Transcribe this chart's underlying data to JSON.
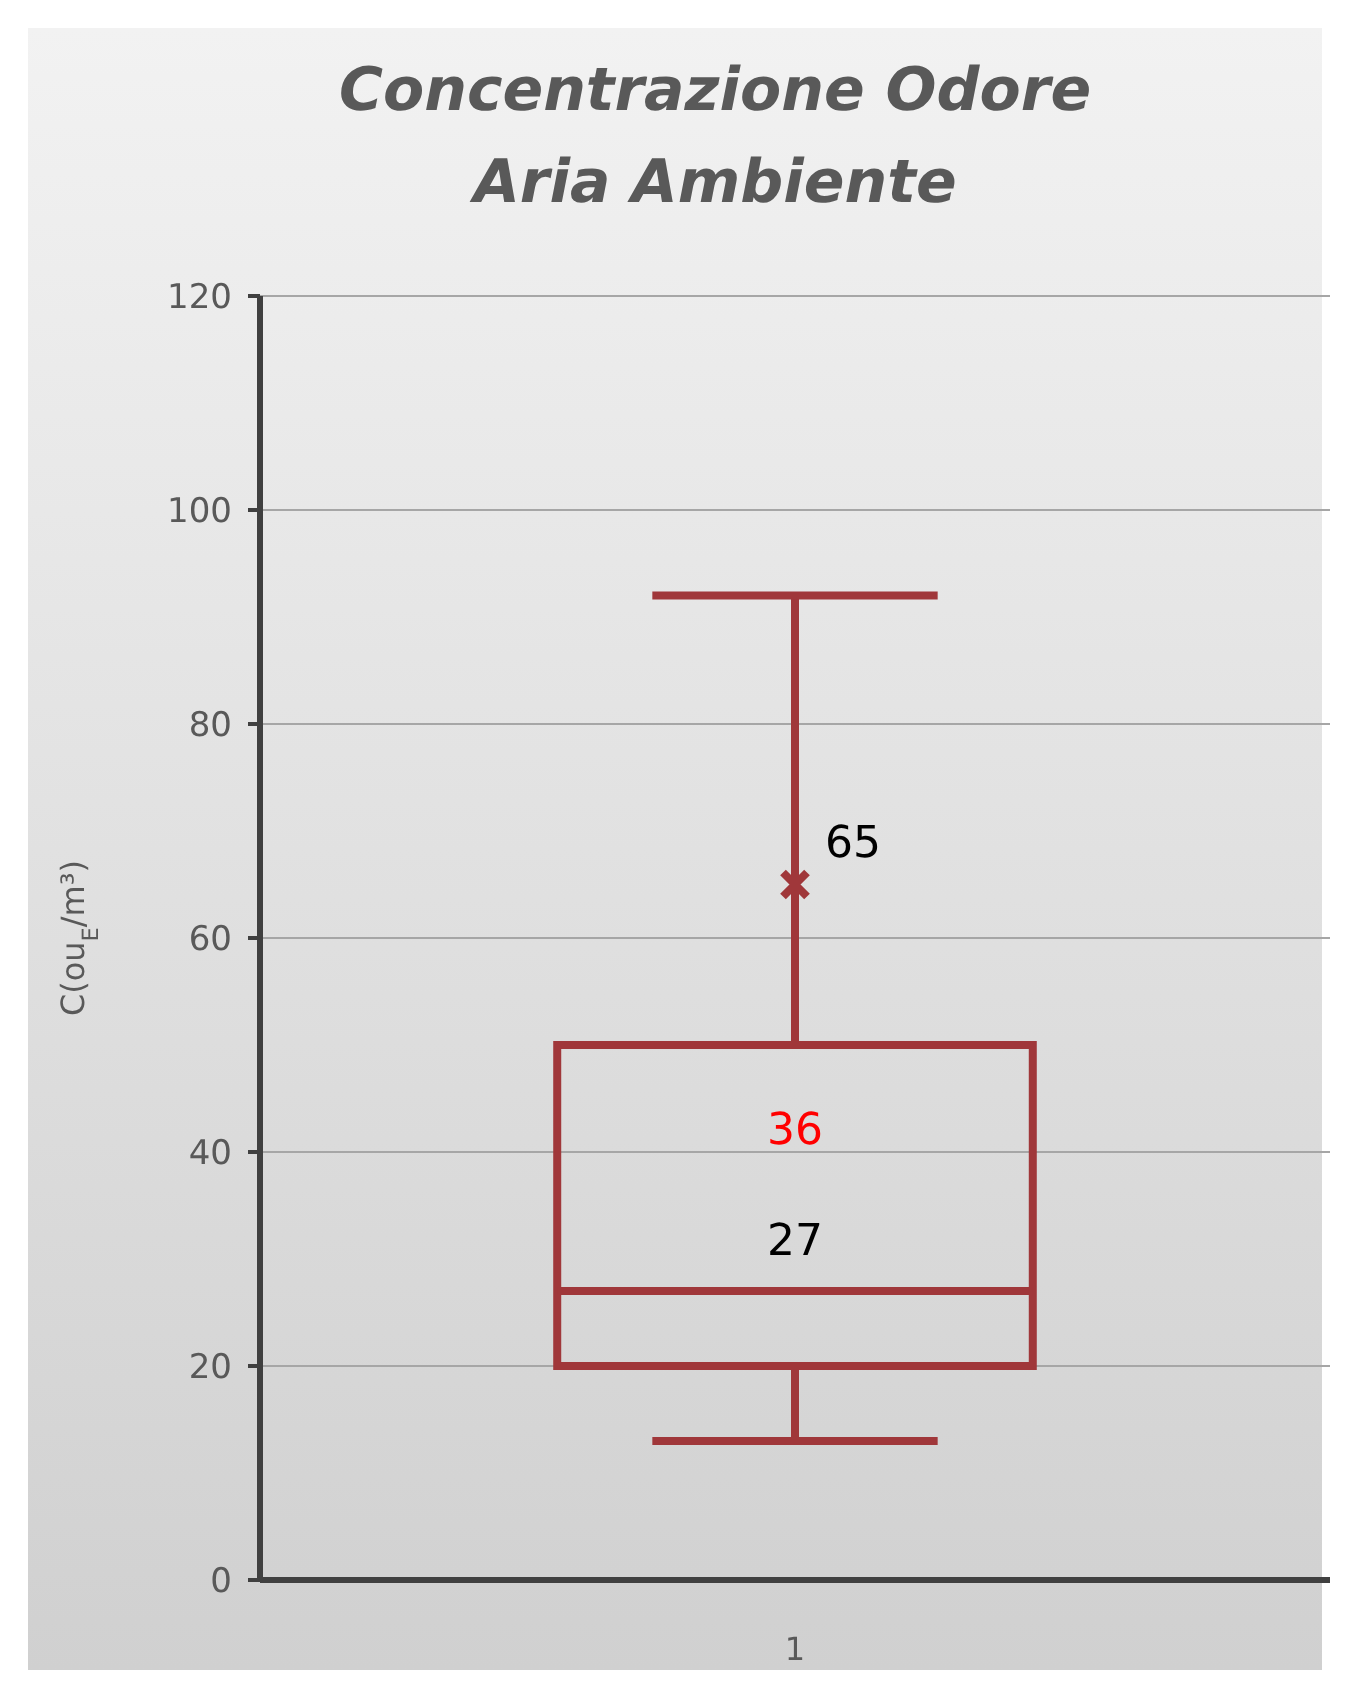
{
  "chart_data": {
    "type": "box",
    "title": "Concentrazione Odore Aria Ambiente",
    "ylabel": "C(ou$_{E}$/m³)",
    "categories": [
      "1"
    ],
    "boxes": [
      {
        "low": 13,
        "q1": 20,
        "median": 27,
        "q3": 50,
        "high": 92,
        "mean": 65
      }
    ],
    "color": "#a0373a",
    "ylim": [
      0,
      120
    ],
    "yticks": [
      0,
      20,
      40,
      60,
      80,
      100,
      120
    ],
    "grid": "y",
    "annotations": [
      {
        "text": "65",
        "x": "1",
        "y": 65
      },
      "36",
      {
        "text": "27",
        "x": "1",
        "y": 27
      }
    ]
  }
}
